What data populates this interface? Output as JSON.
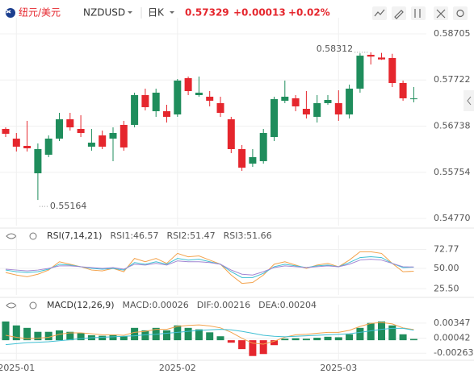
{
  "header": {
    "pair": "纽元/美元",
    "symbol": "NZDUSD",
    "period": "日K",
    "price": "0.57329",
    "change": "+0.00013",
    "change_pct": "+0.02%"
  },
  "chart_data": [
    {
      "type": "candlestick",
      "categories": [
        null,
        "2025-01",
        null,
        null,
        null,
        null,
        null,
        null,
        null,
        null,
        null,
        null,
        null,
        null,
        null,
        null,
        "2025-02",
        null,
        null,
        null,
        null,
        null,
        null,
        null,
        null,
        null,
        null,
        null,
        null,
        null,
        null,
        "2025-03",
        null,
        null,
        null,
        null,
        null,
        null,
        null
      ],
      "open": [
        0.56678,
        0.56472,
        0.56317,
        0.55733,
        0.56128,
        0.56472,
        0.56884,
        0.56678,
        0.563,
        0.5654,
        0.56472,
        0.56764,
        0.56764,
        0.57399,
        0.57056,
        0.57056,
        0.56987,
        0.5776,
        0.57399,
        0.57365,
        0.57228,
        0.56884,
        0.56248,
        0.55939,
        0.55991,
        0.56506,
        0.57279,
        0.57331,
        0.57107,
        0.56936,
        0.57228,
        0.57228,
        0.56987,
        0.57537,
        0.58258,
        0.582,
        0.5819,
        0.57657,
        0.57316
      ],
      "high": [
        0.56712,
        0.56592,
        0.5685,
        0.56369,
        0.5654,
        0.57021,
        0.57021,
        0.5697,
        0.56678,
        0.56643,
        0.56712,
        0.5685,
        0.57451,
        0.57537,
        0.57537,
        0.57193,
        0.57743,
        0.57795,
        0.57795,
        0.57485,
        0.57365,
        0.56936,
        0.56334,
        0.56248,
        0.56678,
        0.57365,
        0.57709,
        0.57399,
        0.57485,
        0.57399,
        0.57399,
        0.57502,
        0.57623,
        0.5829,
        0.58312,
        0.583,
        0.5828,
        0.57709,
        0.57571
      ],
      "low": [
        0.56506,
        0.56197,
        0.56197,
        0.55164,
        0.56077,
        0.5642,
        0.56643,
        0.56506,
        0.56214,
        0.56248,
        0.55991,
        0.56214,
        0.56712,
        0.57073,
        0.56936,
        0.56815,
        0.56936,
        0.57399,
        0.57365,
        0.57159,
        0.56936,
        0.56162,
        0.55784,
        0.5587,
        0.55939,
        0.5642,
        0.57228,
        0.57056,
        0.56901,
        0.56815,
        0.57193,
        0.5685,
        0.56901,
        0.57451,
        0.58052,
        0.5815,
        0.57571,
        0.57279,
        0.57245
      ],
      "close": [
        0.56575,
        0.563,
        0.56265,
        0.56248,
        0.56472,
        0.56884,
        0.56712,
        0.56592,
        0.56386,
        0.563,
        0.56592,
        0.56283,
        0.57399,
        0.57142,
        0.57451,
        0.56936,
        0.57709,
        0.57485,
        0.57451,
        0.57279,
        0.57021,
        0.56248,
        0.55853,
        0.56077,
        0.56592,
        0.57313,
        0.57365,
        0.57159,
        0.56987,
        0.57228,
        0.57296,
        0.56987,
        0.57537,
        0.5824,
        0.5822,
        0.5816,
        0.57657,
        0.57331,
        0.57329
      ],
      "up_color": "#1f8d5c",
      "down_color": "#e5262d",
      "high_label": "0.58312",
      "low_label": "0.55164",
      "ylim": [
        0.54616,
        0.58911
      ],
      "yticks": [
        0.58705,
        0.57722,
        0.56738,
        0.55754,
        {
          "value": 0.5477,
          "label": "0.54770"
        }
      ],
      "grid": true
    },
    {
      "type": "line",
      "title": "RSI(7,14,21)",
      "series": [
        {
          "name": "RSI1:46.57",
          "color": "#f3a24c",
          "values": [
            45,
            42,
            40,
            43,
            48,
            58,
            55,
            52,
            48,
            47,
            50,
            46,
            62,
            58,
            62,
            56,
            68,
            64,
            65,
            60,
            55,
            42,
            32,
            33,
            42,
            55,
            58,
            54,
            50,
            54,
            56,
            52,
            60,
            70,
            70,
            68,
            56,
            46,
            46.57
          ]
        },
        {
          "name": "RSI2:51.47",
          "color": "#3fbfd3",
          "values": [
            48,
            46,
            45,
            46,
            49,
            55,
            54,
            52,
            50,
            49,
            50,
            48,
            57,
            55,
            58,
            55,
            62,
            60,
            61,
            58,
            55,
            46,
            39,
            39,
            44,
            52,
            55,
            53,
            51,
            53,
            54,
            52,
            57,
            63,
            64,
            63,
            56,
            51,
            51.47
          ]
        },
        {
          "name": "RSI3:51.66",
          "color": "#a185d2",
          "values": [
            49,
            48,
            47,
            48,
            50,
            53,
            53,
            52,
            51,
            50,
            51,
            49,
            55,
            54,
            56,
            54,
            59,
            58,
            58,
            57,
            55,
            48,
            43,
            42,
            46,
            51,
            53,
            52,
            51,
            52,
            53,
            52,
            55,
            60,
            61,
            60,
            56,
            52,
            51.66
          ]
        }
      ],
      "ylim": [
        18,
        82
      ],
      "yticks": [
        72.77,
        {
          "value": 50,
          "label": "50.00"
        },
        {
          "value": 25.5,
          "label": "25.50"
        }
      ],
      "grid": true
    },
    {
      "type": "macd",
      "title": "MACD(12,26,9)",
      "series": [
        {
          "name": "MACD:0.00026",
          "color": "#a070d0",
          "style": "bar",
          "values": [
            0.0038,
            0.003,
            0.0025,
            0.0017,
            0.0017,
            0.002,
            0.0017,
            0.0014,
            0.001,
            0.0009,
            0.001,
            0.0008,
            0.0025,
            0.002,
            0.0025,
            0.002,
            0.003,
            0.0025,
            0.0022,
            0.0016,
            0.0008,
            -0.0005,
            -0.0018,
            -0.0032,
            -0.0028,
            -0.001,
            0.0003,
            0.0004,
            0.0003,
            0.0005,
            0.0007,
            0.0006,
            0.0012,
            0.0025,
            0.0035,
            0.0038,
            0.003,
            0.0012,
            0.00026
          ]
        },
        {
          "name": "DIF:0.00216",
          "color": "#f3a24c",
          "style": "line",
          "values": [
            0.001,
            0.0006,
            0.0003,
            0.0004,
            0.0006,
            0.0012,
            0.0015,
            0.0015,
            0.0013,
            0.0011,
            0.0011,
            0.001,
            0.0016,
            0.0018,
            0.0022,
            0.0022,
            0.0028,
            0.003,
            0.0031,
            0.0029,
            0.0025,
            0.0016,
            0.0004,
            -0.0006,
            -0.0008,
            -0.0002,
            0.0006,
            0.0011,
            0.0012,
            0.0014,
            0.0016,
            0.0016,
            0.002,
            0.0028,
            0.0034,
            0.0036,
            0.0033,
            0.0025,
            0.00216
          ]
        },
        {
          "name": "DEA:0.00204",
          "color": "#3fbfd3",
          "style": "line",
          "values": [
            -0.0009,
            -0.0007,
            -0.0005,
            -0.0004,
            -0.0003,
            -0.0001,
            0.0001,
            0.0003,
            0.0005,
            0.0006,
            0.0007,
            0.0008,
            0.0009,
            0.0011,
            0.0012,
            0.0014,
            0.0016,
            0.0018,
            0.002,
            0.0021,
            0.0022,
            0.0021,
            0.0018,
            0.0014,
            0.001,
            0.0008,
            0.0007,
            0.0008,
            0.0009,
            0.001,
            0.0011,
            0.0012,
            0.0013,
            0.0016,
            0.0019,
            0.0022,
            0.0024,
            0.0024,
            0.00204
          ]
        }
      ],
      "up_color": "#1f8d5c",
      "down_color": "#e5262d",
      "ylim": [
        -0.0039,
        0.0059
      ],
      "yticks": [
        0.00347,
        0.00042,
        -0.00263
      ],
      "grid": true
    }
  ]
}
